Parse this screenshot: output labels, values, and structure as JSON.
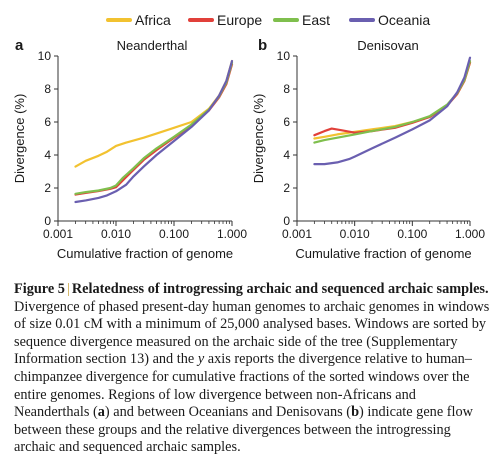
{
  "legend": {
    "entries": [
      {
        "name": "Africa",
        "color": "#f2c230"
      },
      {
        "name": "Europe",
        "color": "#e1403a"
      },
      {
        "name": "East",
        "color": "#7fbf4d"
      },
      {
        "name": "Oceania",
        "color": "#6a5fb0"
      }
    ]
  },
  "chart_data": [
    {
      "type": "line",
      "panel_label": "a",
      "title": "Neanderthal",
      "xlabel": "Cumulative fraction of genome",
      "ylabel": "Divergence (%)",
      "x_scale": "log",
      "xlim": [
        0.001,
        1.0
      ],
      "ylim": [
        0,
        10
      ],
      "x_ticks": [
        0.001,
        0.01,
        0.1,
        1.0
      ],
      "x_tick_labels": [
        "0.001",
        "0.010",
        "0.100",
        "1.000"
      ],
      "y_ticks": [
        0,
        2,
        4,
        6,
        8,
        10
      ],
      "y_tick_labels": [
        "0",
        "2",
        "4",
        "6",
        "8",
        "10"
      ],
      "series": [
        {
          "name": "Africa",
          "color": "#f2c230",
          "points": [
            [
              0.002,
              3.3
            ],
            [
              0.003,
              3.65
            ],
            [
              0.005,
              3.95
            ],
            [
              0.007,
              4.2
            ],
            [
              0.01,
              4.55
            ],
            [
              0.015,
              4.75
            ],
            [
              0.03,
              5.05
            ],
            [
              0.05,
              5.3
            ],
            [
              0.1,
              5.65
            ],
            [
              0.2,
              6.0
            ],
            [
              0.4,
              6.8
            ],
            [
              0.6,
              7.6
            ],
            [
              0.8,
              8.5
            ],
            [
              1.0,
              9.7
            ]
          ]
        },
        {
          "name": "Europe",
          "color": "#e1403a",
          "points": [
            [
              0.002,
              1.6
            ],
            [
              0.003,
              1.7
            ],
            [
              0.005,
              1.82
            ],
            [
              0.008,
              1.95
            ],
            [
              0.01,
              2.05
            ],
            [
              0.013,
              2.45
            ],
            [
              0.02,
              3.1
            ],
            [
              0.03,
              3.7
            ],
            [
              0.05,
              4.3
            ],
            [
              0.1,
              5.05
            ],
            [
              0.2,
              5.8
            ],
            [
              0.4,
              6.7
            ],
            [
              0.6,
              7.5
            ],
            [
              0.8,
              8.3
            ],
            [
              1.0,
              9.5
            ]
          ]
        },
        {
          "name": "East",
          "color": "#7fbf4d",
          "points": [
            [
              0.002,
              1.65
            ],
            [
              0.003,
              1.75
            ],
            [
              0.005,
              1.85
            ],
            [
              0.008,
              2.0
            ],
            [
              0.01,
              2.15
            ],
            [
              0.013,
              2.6
            ],
            [
              0.02,
              3.2
            ],
            [
              0.03,
              3.8
            ],
            [
              0.05,
              4.4
            ],
            [
              0.1,
              5.1
            ],
            [
              0.2,
              5.85
            ],
            [
              0.4,
              6.75
            ],
            [
              0.6,
              7.55
            ],
            [
              0.8,
              8.4
            ],
            [
              1.0,
              9.6
            ]
          ]
        },
        {
          "name": "Oceania",
          "color": "#6a5fb0",
          "points": [
            [
              0.002,
              1.15
            ],
            [
              0.003,
              1.25
            ],
            [
              0.005,
              1.4
            ],
            [
              0.007,
              1.55
            ],
            [
              0.01,
              1.8
            ],
            [
              0.015,
              2.2
            ],
            [
              0.02,
              2.7
            ],
            [
              0.03,
              3.3
            ],
            [
              0.05,
              4.0
            ],
            [
              0.1,
              4.85
            ],
            [
              0.2,
              5.7
            ],
            [
              0.4,
              6.7
            ],
            [
              0.6,
              7.6
            ],
            [
              0.8,
              8.5
            ],
            [
              1.0,
              9.7
            ]
          ]
        }
      ]
    },
    {
      "type": "line",
      "panel_label": "b",
      "title": "Denisovan",
      "xlabel": "Cumulative fraction of genome",
      "ylabel": "Divergence (%)",
      "x_scale": "log",
      "xlim": [
        0.001,
        1.0
      ],
      "ylim": [
        0,
        10
      ],
      "x_ticks": [
        0.001,
        0.01,
        0.1,
        1.0
      ],
      "x_tick_labels": [
        "0.001",
        "0.010",
        "0.100",
        "1.000"
      ],
      "y_ticks": [
        0,
        2,
        4,
        6,
        8,
        10
      ],
      "y_tick_labels": [
        "0",
        "2",
        "4",
        "6",
        "8",
        "10"
      ],
      "series": [
        {
          "name": "Africa",
          "color": "#f2c230",
          "points": [
            [
              0.002,
              5.0
            ],
            [
              0.003,
              5.1
            ],
            [
              0.005,
              5.25
            ],
            [
              0.01,
              5.4
            ],
            [
              0.02,
              5.55
            ],
            [
              0.05,
              5.75
            ],
            [
              0.1,
              6.0
            ],
            [
              0.2,
              6.3
            ],
            [
              0.4,
              7.0
            ],
            [
              0.6,
              7.7
            ],
            [
              0.8,
              8.5
            ],
            [
              1.0,
              9.6
            ]
          ]
        },
        {
          "name": "Europe",
          "color": "#e1403a",
          "points": [
            [
              0.002,
              5.2
            ],
            [
              0.003,
              5.45
            ],
            [
              0.004,
              5.6
            ],
            [
              0.006,
              5.5
            ],
            [
              0.01,
              5.35
            ],
            [
              0.02,
              5.45
            ],
            [
              0.05,
              5.65
            ],
            [
              0.1,
              5.95
            ],
            [
              0.2,
              6.3
            ],
            [
              0.4,
              7.0
            ],
            [
              0.6,
              7.7
            ],
            [
              0.8,
              8.5
            ],
            [
              1.0,
              9.6
            ]
          ]
        },
        {
          "name": "East",
          "color": "#7fbf4d",
          "points": [
            [
              0.002,
              4.75
            ],
            [
              0.003,
              4.9
            ],
            [
              0.005,
              5.05
            ],
            [
              0.01,
              5.25
            ],
            [
              0.02,
              5.45
            ],
            [
              0.05,
              5.7
            ],
            [
              0.1,
              6.0
            ],
            [
              0.2,
              6.35
            ],
            [
              0.4,
              7.05
            ],
            [
              0.6,
              7.75
            ],
            [
              0.8,
              8.55
            ],
            [
              1.0,
              9.7
            ]
          ]
        },
        {
          "name": "Oceania",
          "color": "#6a5fb0",
          "points": [
            [
              0.002,
              3.45
            ],
            [
              0.003,
              3.45
            ],
            [
              0.005,
              3.55
            ],
            [
              0.008,
              3.75
            ],
            [
              0.01,
              3.9
            ],
            [
              0.02,
              4.4
            ],
            [
              0.05,
              5.05
            ],
            [
              0.1,
              5.55
            ],
            [
              0.2,
              6.1
            ],
            [
              0.4,
              6.95
            ],
            [
              0.6,
              7.8
            ],
            [
              0.8,
              8.7
            ],
            [
              1.0,
              9.9
            ]
          ]
        }
      ]
    }
  ],
  "caption": {
    "label": "Figure 5",
    "separator": "|",
    "title": "Relatedness of introgressing archaic and sequenced archaic samples.",
    "part1": "Divergence of phased present-day human genomes to archaic genomes in windows of size 0.01 cM with a minimum of 25,000 analysed bases. Windows are sorted by sequence divergence measured on the archaic side of the tree (Supplementary Information section 13) and the ",
    "axis_letter": "y",
    "part2": " axis reports the divergence relative to human–chimpanzee divergence for cumulative fractions of the sorted windows over the entire genomes. Regions of low divergence between non-Africans and Neanderthals (",
    "ref_a": "a",
    "part3": ") and between Oceanians and Denisovans (",
    "ref_b": "b",
    "part4": ") indicate gene flow between these groups and the relative divergences between the introgressing archaic and sequenced archaic samples."
  }
}
